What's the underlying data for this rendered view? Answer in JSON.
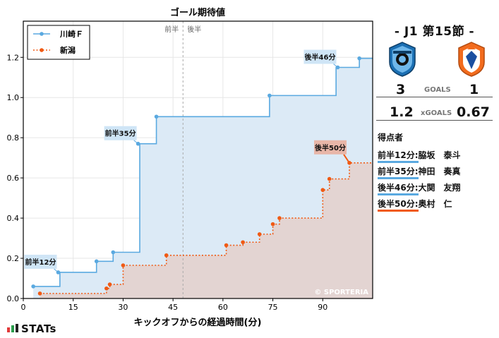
{
  "chart_data": {
    "type": "line",
    "title": "ゴール期待値",
    "xlabel": "キックオフからの経過時間(分)",
    "ylabel": "",
    "xlim": [
      0,
      105
    ],
    "ylim": [
      0,
      1.38
    ],
    "xticks": [
      0,
      15,
      30,
      45,
      60,
      75,
      90
    ],
    "yticks": [
      0.0,
      0.2,
      0.4,
      0.6,
      0.8,
      1.0,
      1.2
    ],
    "ytick_labels": [
      "0.0",
      "0.2",
      "0.4",
      "0.6",
      "0.8",
      "1.0",
      "1.2"
    ],
    "halftime_x": 48,
    "halftime_labels": [
      "前半",
      "後半"
    ],
    "grid": true,
    "legend_position": "top-left",
    "series": [
      {
        "name": "川崎Ｆ",
        "color": "#5aa9e0",
        "fill": "#dceaf6",
        "step_points": [
          [
            3,
            0.06
          ],
          [
            11,
            0.13
          ],
          [
            22,
            0.185
          ],
          [
            27,
            0.23
          ],
          [
            35,
            0.77
          ],
          [
            40,
            0.905
          ],
          [
            74,
            1.01
          ],
          [
            94,
            1.15
          ],
          [
            101,
            1.195
          ],
          [
            105,
            1.195
          ]
        ],
        "markers": [
          [
            3,
            0.06
          ],
          [
            10.5,
            0.13
          ],
          [
            22,
            0.185
          ],
          [
            27,
            0.23
          ],
          [
            34.5,
            0.77
          ],
          [
            40,
            0.905
          ],
          [
            74,
            1.01
          ],
          [
            94.5,
            1.15
          ],
          [
            101,
            1.195
          ]
        ]
      },
      {
        "name": "新潟",
        "color": "#f05a14",
        "fill": "#e3d4d2",
        "step_points": [
          [
            5,
            0.025
          ],
          [
            25,
            0.05
          ],
          [
            26,
            0.07
          ],
          [
            30,
            0.165
          ],
          [
            43,
            0.215
          ],
          [
            61,
            0.265
          ],
          [
            66,
            0.28
          ],
          [
            71,
            0.32
          ],
          [
            75,
            0.37
          ],
          [
            77,
            0.4
          ],
          [
            90,
            0.54
          ],
          [
            92,
            0.595
          ],
          [
            98,
            0.675
          ],
          [
            105,
            0.675
          ]
        ],
        "markers": [
          [
            5,
            0.025
          ],
          [
            25,
            0.05
          ],
          [
            26,
            0.07
          ],
          [
            30,
            0.165
          ],
          [
            43,
            0.215
          ],
          [
            61,
            0.265
          ],
          [
            66,
            0.28
          ],
          [
            71,
            0.32
          ],
          [
            75,
            0.37
          ],
          [
            77,
            0.4
          ],
          [
            90,
            0.54
          ],
          [
            92,
            0.595
          ],
          [
            98,
            0.675
          ]
        ]
      }
    ],
    "annotations": [
      {
        "text": "前半12分",
        "x": 10.5,
        "y": 0.13,
        "team": "川崎Ｆ"
      },
      {
        "text": "前半35分",
        "x": 34.5,
        "y": 0.77,
        "team": "川崎Ｆ"
      },
      {
        "text": "後半46分",
        "x": 94.5,
        "y": 1.15,
        "team": "川崎Ｆ"
      },
      {
        "text": "後半50分",
        "x": 98,
        "y": 0.675,
        "team": "新潟"
      }
    ],
    "watermark": "© SPORTERIA"
  },
  "match": {
    "round": "-  J1 第15節  -",
    "home_goals": "3",
    "goals_label": "GOALS",
    "away_goals": "1",
    "home_xg": "1.2",
    "xg_label": "xGOALS",
    "away_xg": "0.67"
  },
  "scorers": {
    "title": "得点者",
    "items": [
      {
        "time": "前半12分:",
        "name": "脇坂　泰斗",
        "color": "#5aa9e0"
      },
      {
        "time": "前半35分:",
        "name": "神田　奏真",
        "color": "#5aa9e0"
      },
      {
        "time": "後半46分:",
        "name": "大関　友翔",
        "color": "#5aa9e0"
      },
      {
        "time": "後半50分:",
        "name": "奥村　仁",
        "color": "#f05a14"
      }
    ]
  },
  "brand": "STATs"
}
